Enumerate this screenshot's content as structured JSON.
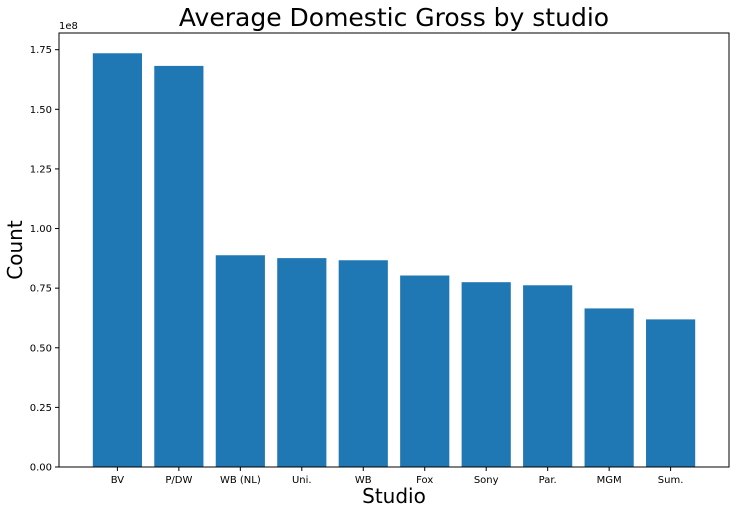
{
  "chart_data": {
    "type": "bar",
    "title": "Average Domestic Gross by studio",
    "xlabel": "Studio",
    "ylabel": "Count",
    "y_offset_label": "1e8",
    "y_scale": 100000000,
    "categories": [
      "BV",
      "P/DW",
      "WB (NL)",
      "Uni.",
      "WB",
      "Fox",
      "Sony",
      "Par.",
      "MGM",
      "Sum."
    ],
    "values": [
      173500000,
      168200000,
      88800000,
      87600000,
      86700000,
      80300000,
      77500000,
      76200000,
      66500000,
      61900000
    ],
    "ylim": [
      0,
      182000000
    ],
    "yticks": [
      0,
      25000000,
      50000000,
      75000000,
      100000000,
      125000000,
      150000000,
      175000000
    ],
    "ytick_labels": [
      "0.00",
      "0.25",
      "0.50",
      "0.75",
      "1.00",
      "1.25",
      "1.50",
      "1.75"
    ],
    "bar_color": "#1f77b4",
    "grid": false,
    "legend": "none"
  }
}
